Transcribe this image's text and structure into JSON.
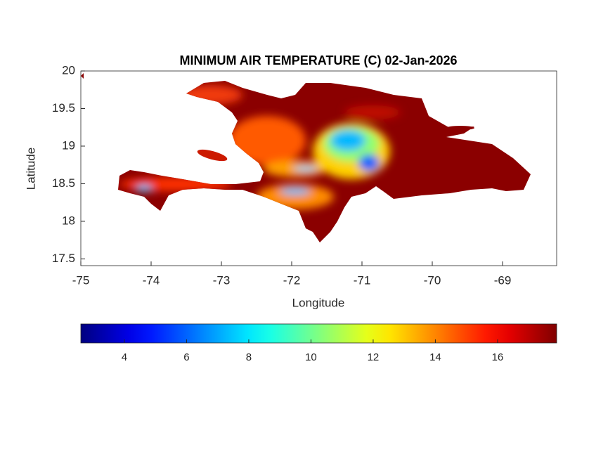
{
  "chart_data": {
    "type": "map",
    "title": "MINIMUM AIR TEMPERATURE (C) 02-Jan-2026",
    "x_label": "Longitude",
    "y_label": "Latitude",
    "xlim": [
      -75,
      -68.23
    ],
    "xticks": [
      -75,
      -74,
      -73,
      -72,
      -71,
      -70,
      -69
    ],
    "ylim": [
      17.41,
      20
    ],
    "yticks": [
      17.5,
      18,
      18.5,
      19,
      19.5,
      20
    ],
    "colormap": "jet",
    "clim": [
      2.6,
      17.9
    ],
    "cticks": [
      4,
      6,
      8,
      10,
      12,
      14,
      16
    ]
  }
}
